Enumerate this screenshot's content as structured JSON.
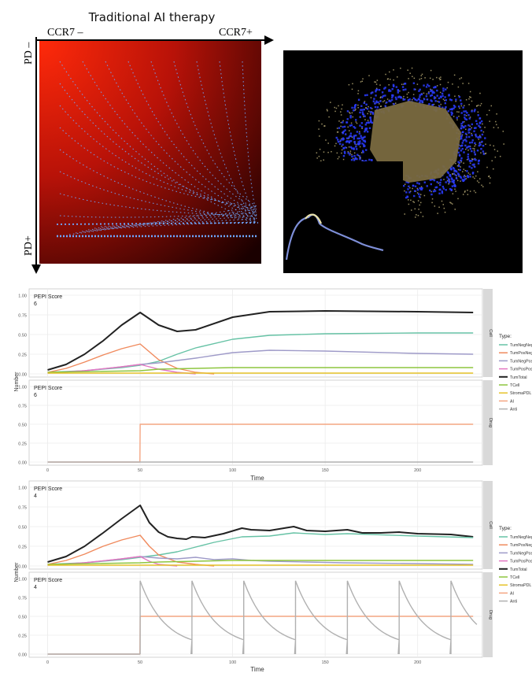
{
  "top_left": {
    "title": "Traditional AI therapy",
    "x_left_label": "CCR7 –",
    "x_right_label": "CCR7+",
    "y_top_label": "PD –",
    "y_bottom_label": "PD+"
  },
  "colors": {
    "field_hot": "#ff2a0a",
    "field_cold": "#1a0000",
    "trajectory": "#6fa8ff",
    "agent_blue": "#2a3cff",
    "tumor_core": "#7a6a40",
    "TumNegNeg": "#66c2a5",
    "TumPosNeg": "#f08a5d",
    "TumNegPos": "#9e9ac8",
    "TumPosPos": "#e377c2",
    "TumTotal": "#222222",
    "TCell": "#8dc63f",
    "StromaPDL": "#e6c229",
    "AI": "#f4a582",
    "Anti": "#b0b0b0"
  },
  "legend": {
    "title": "Type:",
    "items": [
      "TumNegNeg",
      "TumPosNeg",
      "TumNegPos",
      "TumPosPos",
      "TumTotal",
      "TCell",
      "StromaPDL",
      "AI",
      "Anti"
    ]
  },
  "facet_labels": {
    "cell": "Cell",
    "drug": "Drug"
  },
  "axis": {
    "y_label": "Number",
    "x_label": "Time"
  },
  "chart_data": [
    {
      "type": "line",
      "panel": "PEPI 6 Cell",
      "label": "PEPI Score",
      "score": "6",
      "ylim": [
        0,
        1
      ],
      "xlim": [
        -10,
        235
      ],
      "yticks": [
        "0.00",
        "0.25",
        "0.50",
        "0.75",
        "1.00"
      ],
      "xticks": [
        0,
        50,
        100,
        150,
        200
      ],
      "series": [
        {
          "name": "TumTotal",
          "x": [
            0,
            10,
            20,
            30,
            40,
            50,
            60,
            70,
            80,
            100,
            120,
            150,
            200,
            230
          ],
          "y": [
            0.05,
            0.12,
            0.25,
            0.42,
            0.62,
            0.78,
            0.62,
            0.54,
            0.56,
            0.72,
            0.79,
            0.8,
            0.79,
            0.78
          ]
        },
        {
          "name": "TumNegNeg",
          "x": [
            0,
            20,
            40,
            50,
            60,
            70,
            80,
            100,
            120,
            150,
            200,
            230
          ],
          "y": [
            0.02,
            0.04,
            0.08,
            0.11,
            0.16,
            0.25,
            0.33,
            0.44,
            0.49,
            0.51,
            0.52,
            0.52
          ]
        },
        {
          "name": "TumPosNeg",
          "x": [
            0,
            10,
            20,
            30,
            40,
            50,
            60,
            70,
            80,
            90
          ],
          "y": [
            0.02,
            0.07,
            0.15,
            0.24,
            0.32,
            0.38,
            0.18,
            0.07,
            0.02,
            0.0
          ]
        },
        {
          "name": "TumNegPos",
          "x": [
            0,
            20,
            40,
            50,
            60,
            80,
            100,
            120,
            150,
            200,
            230
          ],
          "y": [
            0.01,
            0.04,
            0.09,
            0.12,
            0.14,
            0.2,
            0.27,
            0.3,
            0.29,
            0.26,
            0.25
          ]
        },
        {
          "name": "TumPosPos",
          "x": [
            0,
            20,
            40,
            50,
            60,
            70,
            80
          ],
          "y": [
            0.01,
            0.04,
            0.09,
            0.12,
            0.06,
            0.02,
            0.0
          ]
        },
        {
          "name": "TCell",
          "x": [
            0,
            50,
            60,
            80,
            100,
            150,
            230
          ],
          "y": [
            0.02,
            0.04,
            0.06,
            0.07,
            0.08,
            0.08,
            0.08
          ]
        },
        {
          "name": "StromaPDL",
          "x": [
            0,
            230
          ],
          "y": [
            0.01,
            0.01
          ]
        }
      ]
    },
    {
      "type": "line",
      "panel": "PEPI 6 Drug",
      "label": "PEPI Score",
      "score": "6",
      "ylim": [
        0,
        1
      ],
      "xlim": [
        -10,
        235
      ],
      "yticks": [
        "0.00",
        "0.25",
        "0.50",
        "0.75",
        "1.00"
      ],
      "xticks": [
        0,
        50,
        100,
        150,
        200
      ],
      "series": [
        {
          "name": "AI",
          "x": [
            0,
            49.9,
            50,
            230
          ],
          "y": [
            0,
            0,
            0.5,
            0.5
          ]
        },
        {
          "name": "Anti",
          "x": [
            0,
            230
          ],
          "y": [
            0,
            0
          ]
        }
      ]
    },
    {
      "type": "line",
      "panel": "PEPI 4 Cell",
      "label": "PEPI Score",
      "score": "4",
      "ylim": [
        0,
        1
      ],
      "xlim": [
        -10,
        235
      ],
      "yticks": [
        "0.00",
        "0.25",
        "0.50",
        "0.75",
        "1.00"
      ],
      "xticks": [
        0,
        50,
        100,
        150,
        200
      ],
      "series": [
        {
          "name": "TumTotal",
          "x": [
            0,
            10,
            20,
            30,
            40,
            50,
            55,
            60,
            65,
            70,
            75,
            78,
            85,
            95,
            105,
            110,
            120,
            133,
            140,
            150,
            162,
            170,
            180,
            190,
            200,
            218,
            230
          ],
          "y": [
            0.05,
            0.12,
            0.25,
            0.42,
            0.6,
            0.77,
            0.55,
            0.43,
            0.37,
            0.35,
            0.34,
            0.37,
            0.36,
            0.41,
            0.48,
            0.46,
            0.45,
            0.5,
            0.45,
            0.44,
            0.46,
            0.42,
            0.42,
            0.43,
            0.41,
            0.4,
            0.37
          ]
        },
        {
          "name": "TumNegNeg",
          "x": [
            0,
            20,
            40,
            50,
            60,
            70,
            80,
            90,
            105,
            120,
            133,
            150,
            162,
            200,
            230
          ],
          "y": [
            0.02,
            0.04,
            0.08,
            0.11,
            0.14,
            0.18,
            0.24,
            0.3,
            0.37,
            0.38,
            0.42,
            0.4,
            0.41,
            0.38,
            0.36
          ]
        },
        {
          "name": "TumPosNeg",
          "x": [
            0,
            10,
            20,
            30,
            40,
            50,
            55,
            60,
            70,
            80,
            90
          ],
          "y": [
            0.02,
            0.07,
            0.15,
            0.25,
            0.33,
            0.39,
            0.25,
            0.14,
            0.05,
            0.02,
            0.0
          ]
        },
        {
          "name": "TumNegPos",
          "x": [
            0,
            20,
            40,
            50,
            60,
            70,
            80,
            90,
            100,
            110,
            120,
            140,
            160,
            200,
            230
          ],
          "y": [
            0.01,
            0.04,
            0.09,
            0.12,
            0.1,
            0.09,
            0.11,
            0.08,
            0.09,
            0.07,
            0.06,
            0.05,
            0.04,
            0.03,
            0.02
          ]
        },
        {
          "name": "TumPosPos",
          "x": [
            0,
            20,
            40,
            50,
            55,
            60,
            70
          ],
          "y": [
            0.01,
            0.04,
            0.09,
            0.12,
            0.06,
            0.02,
            0.0
          ]
        },
        {
          "name": "TCell",
          "x": [
            0,
            50,
            60,
            80,
            100,
            150,
            230
          ],
          "y": [
            0.02,
            0.04,
            0.05,
            0.06,
            0.07,
            0.07,
            0.07
          ]
        },
        {
          "name": "StromaPDL",
          "x": [
            0,
            230
          ],
          "y": [
            0.01,
            0.01
          ]
        }
      ]
    },
    {
      "type": "line",
      "panel": "PEPI 4 Drug",
      "label": "PEPI Score",
      "score": "4",
      "ylim": [
        0,
        1
      ],
      "xlim": [
        -10,
        235
      ],
      "yticks": [
        "0.00",
        "0.25",
        "0.50",
        "0.75",
        "1.00"
      ],
      "xticks": [
        0,
        50,
        100,
        150,
        200
      ],
      "series": [
        {
          "name": "AI",
          "x": [
            0,
            49.9,
            50,
            230
          ],
          "y": [
            0,
            0,
            0.5,
            0.5
          ]
        },
        {
          "name": "Anti",
          "x": [
            0,
            50
          ],
          "y": [
            0,
            0
          ]
        }
      ],
      "anti_pulses": {
        "start": 50,
        "period": 28,
        "until": 232,
        "peak": 0.97,
        "floor": 0.08,
        "decay": 0.075
      }
    }
  ]
}
